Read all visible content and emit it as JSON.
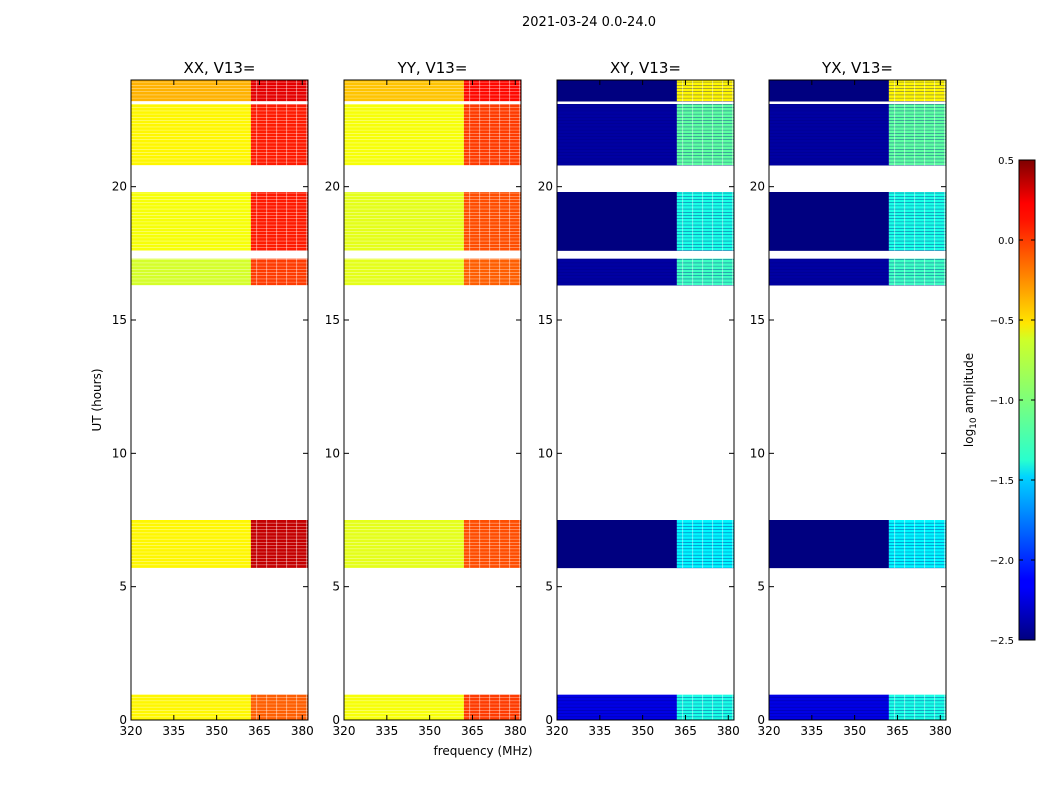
{
  "figure": {
    "suptitle": "2021-03-24 0.0-24.0",
    "xlabel": "frequency (MHz)",
    "ylabel": "UT (hours)"
  },
  "colorbar": {
    "label": "log10 amplitude",
    "label_main": "log",
    "label_sub": "10",
    "label_rest": " amplitude",
    "range": [
      -2.5,
      0.5
    ],
    "ticks": [
      0.5,
      0.0,
      -0.5,
      -1.0,
      -1.5,
      -2.0,
      -2.5
    ],
    "tick_labels": [
      "0.5",
      "0.0",
      "−0.5",
      "−1.0",
      "−1.5",
      "−2.0",
      "−2.5"
    ],
    "colormap": "jet"
  },
  "chart_data": {
    "type": "heatmap",
    "xlim": [
      320,
      382
    ],
    "ylim": [
      0,
      24
    ],
    "xticks": [
      320,
      335,
      350,
      365,
      380
    ],
    "yticks": [
      0,
      5,
      10,
      15,
      20
    ],
    "panels": [
      {
        "title": "XX, V13=",
        "x": [
          320,
          362,
          382
        ],
        "y_bands": [
          [
            0.0,
            0.95
          ],
          [
            5.7,
            7.5
          ],
          [
            16.3,
            17.3
          ],
          [
            17.6,
            19.8
          ],
          [
            20.8,
            23.1
          ],
          [
            23.2,
            24.0
          ]
        ],
        "values": [
          [
            -0.6,
            -0.15
          ],
          [
            -0.6,
            0.3
          ],
          [
            -0.75,
            -0.05
          ],
          [
            -0.65,
            0.05
          ],
          [
            -0.6,
            0.05
          ],
          [
            -0.4,
            0.2
          ]
        ]
      },
      {
        "title": "YY, V13=",
        "x": [
          320,
          362,
          382
        ],
        "y_bands": [
          [
            0.0,
            0.95
          ],
          [
            5.7,
            7.5
          ],
          [
            16.3,
            17.3
          ],
          [
            17.6,
            19.8
          ],
          [
            20.8,
            23.1
          ],
          [
            23.2,
            24.0
          ]
        ],
        "values": [
          [
            -0.65,
            -0.05
          ],
          [
            -0.7,
            -0.1
          ],
          [
            -0.7,
            -0.15
          ],
          [
            -0.7,
            -0.1
          ],
          [
            -0.65,
            -0.05
          ],
          [
            -0.45,
            0.1
          ]
        ]
      },
      {
        "title": "XY, V13=",
        "x": [
          320,
          362,
          382
        ],
        "y_bands": [
          [
            0.0,
            0.95
          ],
          [
            5.7,
            7.5
          ],
          [
            16.3,
            17.3
          ],
          [
            17.6,
            19.8
          ],
          [
            20.8,
            23.1
          ],
          [
            23.2,
            24.0
          ]
        ],
        "values": [
          [
            -2.2,
            -1.3
          ],
          [
            -2.5,
            -1.4
          ],
          [
            -2.4,
            -1.2
          ],
          [
            -2.5,
            -1.3
          ],
          [
            -2.4,
            -1.1
          ],
          [
            -2.5,
            -0.6
          ]
        ]
      },
      {
        "title": "YX, V13=",
        "x": [
          320,
          362,
          382
        ],
        "y_bands": [
          [
            0.0,
            0.95
          ],
          [
            5.7,
            7.5
          ],
          [
            16.3,
            17.3
          ],
          [
            17.6,
            19.8
          ],
          [
            20.8,
            23.1
          ],
          [
            23.2,
            24.0
          ]
        ],
        "values": [
          [
            -2.2,
            -1.3
          ],
          [
            -2.5,
            -1.4
          ],
          [
            -2.4,
            -1.2
          ],
          [
            -2.5,
            -1.3
          ],
          [
            -2.4,
            -1.1
          ],
          [
            -2.5,
            -0.6
          ]
        ]
      }
    ]
  }
}
